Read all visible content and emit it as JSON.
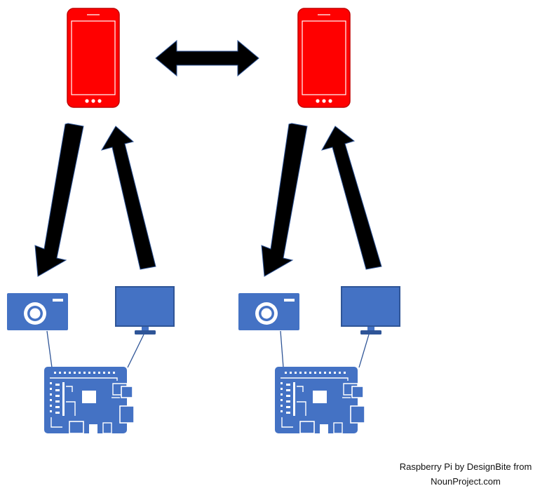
{
  "credit": {
    "line1": "Raspberry Pi by DesignBite from",
    "line2": "NounProject.com"
  },
  "colors": {
    "phone": "#ff0000",
    "phone_outline": "#c00000",
    "device": "#4472c4",
    "arrow": "#000000",
    "arrow_outline": "#2f5597"
  },
  "icons": {
    "phone": "smartphone-icon",
    "camera": "camera-icon",
    "monitor": "monitor-icon",
    "board": "raspberry-pi-icon"
  }
}
